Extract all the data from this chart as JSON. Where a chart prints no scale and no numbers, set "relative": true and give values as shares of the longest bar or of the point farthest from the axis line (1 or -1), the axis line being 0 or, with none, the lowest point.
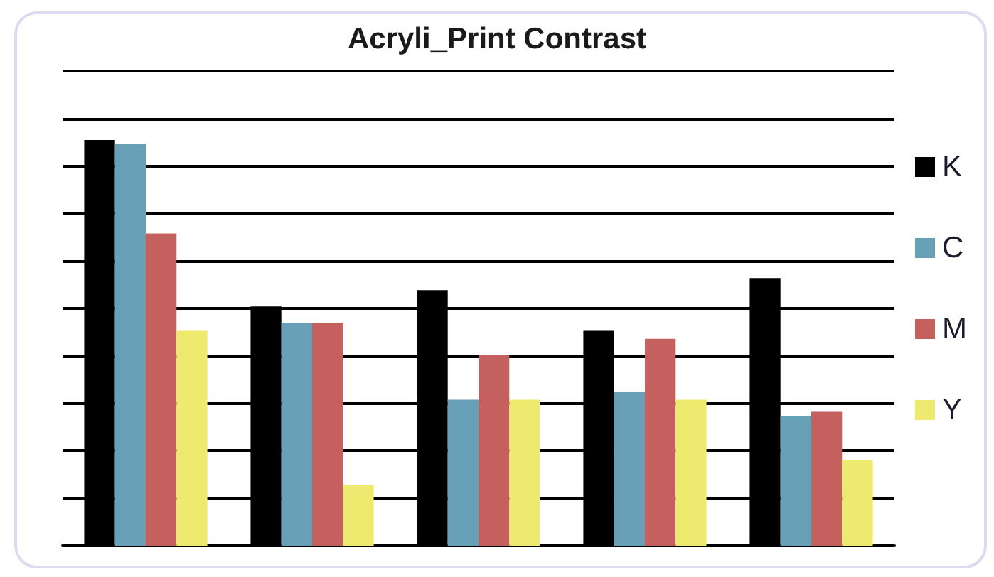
{
  "chart_data": {
    "type": "bar",
    "title": "Acryli_Print Contrast",
    "categories": [
      null,
      null,
      null,
      null,
      null
    ],
    "relative": true,
    "series": [
      {
        "name": "K",
        "color": "#000000",
        "values": [
          1,
          0.59,
          0.63,
          0.53,
          0.66
        ]
      },
      {
        "name": "C",
        "color": "#68a0b8",
        "values": [
          0.99,
          0.55,
          0.36,
          0.38,
          0.32
        ]
      },
      {
        "name": "M",
        "color": "#c4605e",
        "values": [
          0.77,
          0.55,
          0.47,
          0.51,
          0.33
        ]
      },
      {
        "name": "Y",
        "color": "#eeea70",
        "values": [
          0.53,
          0.15,
          0.36,
          0.36,
          0.21
        ]
      }
    ],
    "grid": "y",
    "legend": "right"
  }
}
